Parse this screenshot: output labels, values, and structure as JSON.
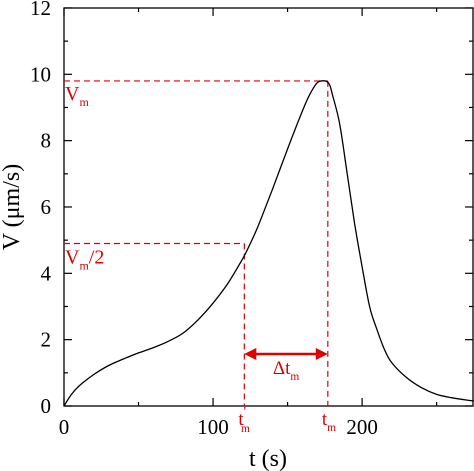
{
  "chart_data": {
    "type": "line",
    "title": "",
    "xlabel": "t (s)",
    "ylabel": "V (μm/s)",
    "xlim": [
      0,
      275
    ],
    "ylim": [
      0,
      12
    ],
    "xticks": [
      0,
      100,
      200
    ],
    "yticks": [
      0,
      2,
      4,
      6,
      8,
      10,
      12
    ],
    "grid": false,
    "series": [
      {
        "color": "#000000",
        "x": [
          0,
          5,
          10,
          20,
          30,
          40,
          50,
          60,
          70,
          80,
          90,
          100,
          110,
          120,
          125,
          130,
          140,
          150,
          160,
          165,
          170,
          175,
          178,
          180,
          185,
          190,
          195,
          200,
          205,
          210,
          215,
          220,
          230,
          240,
          250,
          260,
          270,
          275
        ],
        "y": [
          0,
          0.35,
          0.6,
          0.95,
          1.22,
          1.42,
          1.6,
          1.76,
          1.95,
          2.2,
          2.6,
          3.1,
          3.7,
          4.45,
          4.9,
          5.4,
          6.55,
          7.75,
          8.9,
          9.4,
          9.75,
          9.8,
          9.7,
          9.4,
          8.5,
          7.0,
          5.5,
          4.2,
          3.0,
          2.3,
          1.7,
          1.3,
          0.85,
          0.55,
          0.35,
          0.25,
          0.18,
          0.15
        ]
      }
    ],
    "annotations": {
      "vm": {
        "y": 9.8,
        "label_main": "V",
        "label_sub": "m"
      },
      "vm_half": {
        "y": 4.9,
        "label_main": "V",
        "label_sub": "m",
        "label_suffix": "/2"
      },
      "t_prime": {
        "x": 121,
        "label_main": "t",
        "label_sup": "'",
        "label_sub": "m"
      },
      "t_m": {
        "x": 177,
        "label_main": "t",
        "label_sub": "m"
      },
      "delta_t": {
        "label_main": "Δt",
        "label_sub": "m"
      },
      "color": "#e00000"
    }
  }
}
